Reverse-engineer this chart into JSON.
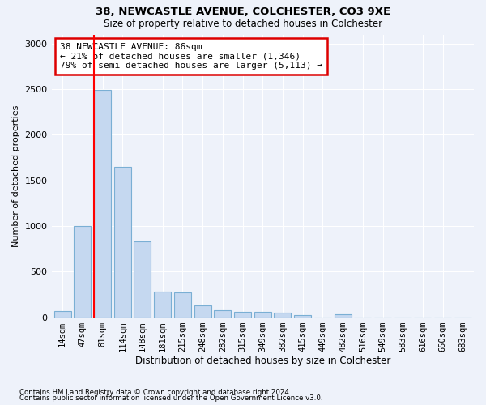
{
  "title1": "38, NEWCASTLE AVENUE, COLCHESTER, CO3 9XE",
  "title2": "Size of property relative to detached houses in Colchester",
  "xlabel": "Distribution of detached houses by size in Colchester",
  "ylabel": "Number of detached properties",
  "footnote1": "Contains HM Land Registry data © Crown copyright and database right 2024.",
  "footnote2": "Contains public sector information licensed under the Open Government Licence v3.0.",
  "bar_labels": [
    "14sqm",
    "47sqm",
    "81sqm",
    "114sqm",
    "148sqm",
    "181sqm",
    "215sqm",
    "248sqm",
    "282sqm",
    "315sqm",
    "349sqm",
    "382sqm",
    "415sqm",
    "449sqm",
    "482sqm",
    "516sqm",
    "549sqm",
    "583sqm",
    "616sqm",
    "650sqm",
    "683sqm"
  ],
  "bar_values": [
    70,
    1000,
    2490,
    1650,
    830,
    280,
    270,
    130,
    75,
    60,
    55,
    50,
    20,
    0,
    28,
    0,
    0,
    0,
    0,
    0,
    0
  ],
  "bar_color": "#c5d8f0",
  "bar_edge_color": "#7aafd4",
  "ylim": [
    0,
    3100
  ],
  "yticks": [
    0,
    500,
    1000,
    1500,
    2000,
    2500,
    3000
  ],
  "red_line_color": "#ff0000",
  "red_line_bar_index": 2,
  "annotation_text": "38 NEWCASTLE AVENUE: 86sqm\n← 21% of detached houses are smaller (1,346)\n79% of semi-detached houses are larger (5,113) →",
  "annotation_box_color": "#ffffff",
  "annotation_border_color": "#dd0000",
  "bg_color": "#eef2fa",
  "grid_color": "#ffffff"
}
